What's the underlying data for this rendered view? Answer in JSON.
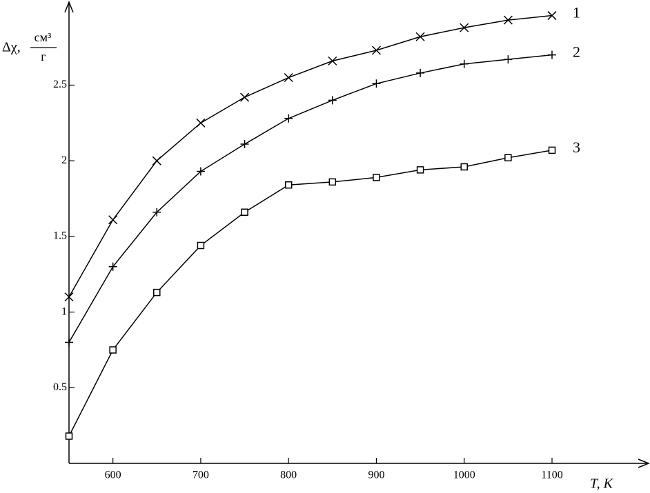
{
  "chart_data": {
    "type": "line",
    "ylabel": {
      "symbol": "Δχ,",
      "numerator": "см³",
      "denominator": "г"
    },
    "xlabel": "T, K",
    "x": [
      550,
      600,
      650,
      700,
      750,
      800,
      850,
      900,
      950,
      1000,
      1050,
      1100
    ],
    "series": [
      {
        "name": "1",
        "color": "#000000",
        "marker": "x",
        "values": [
          1.1,
          1.61,
          2.0,
          2.25,
          2.42,
          2.55,
          2.66,
          2.73,
          2.82,
          2.88,
          2.93,
          2.96
        ]
      },
      {
        "name": "2",
        "color": "#000000",
        "marker": "+",
        "values": [
          0.8,
          1.3,
          1.66,
          1.93,
          2.11,
          2.28,
          2.4,
          2.51,
          2.58,
          2.64,
          2.67,
          2.7
        ]
      },
      {
        "name": "3",
        "color": "#000000",
        "marker": "s",
        "values": [
          0.18,
          0.75,
          1.13,
          1.44,
          1.66,
          1.84,
          1.86,
          1.89,
          1.94,
          1.96,
          2.02,
          2.07
        ]
      }
    ],
    "xlim": [
      550,
      1210
    ],
    "ylim": [
      0,
      3.04
    ],
    "xticks": [
      600,
      700,
      800,
      900,
      1000,
      1100
    ],
    "yticks": [
      0.5,
      1,
      1.5,
      2,
      2.5
    ],
    "grid": false
  }
}
